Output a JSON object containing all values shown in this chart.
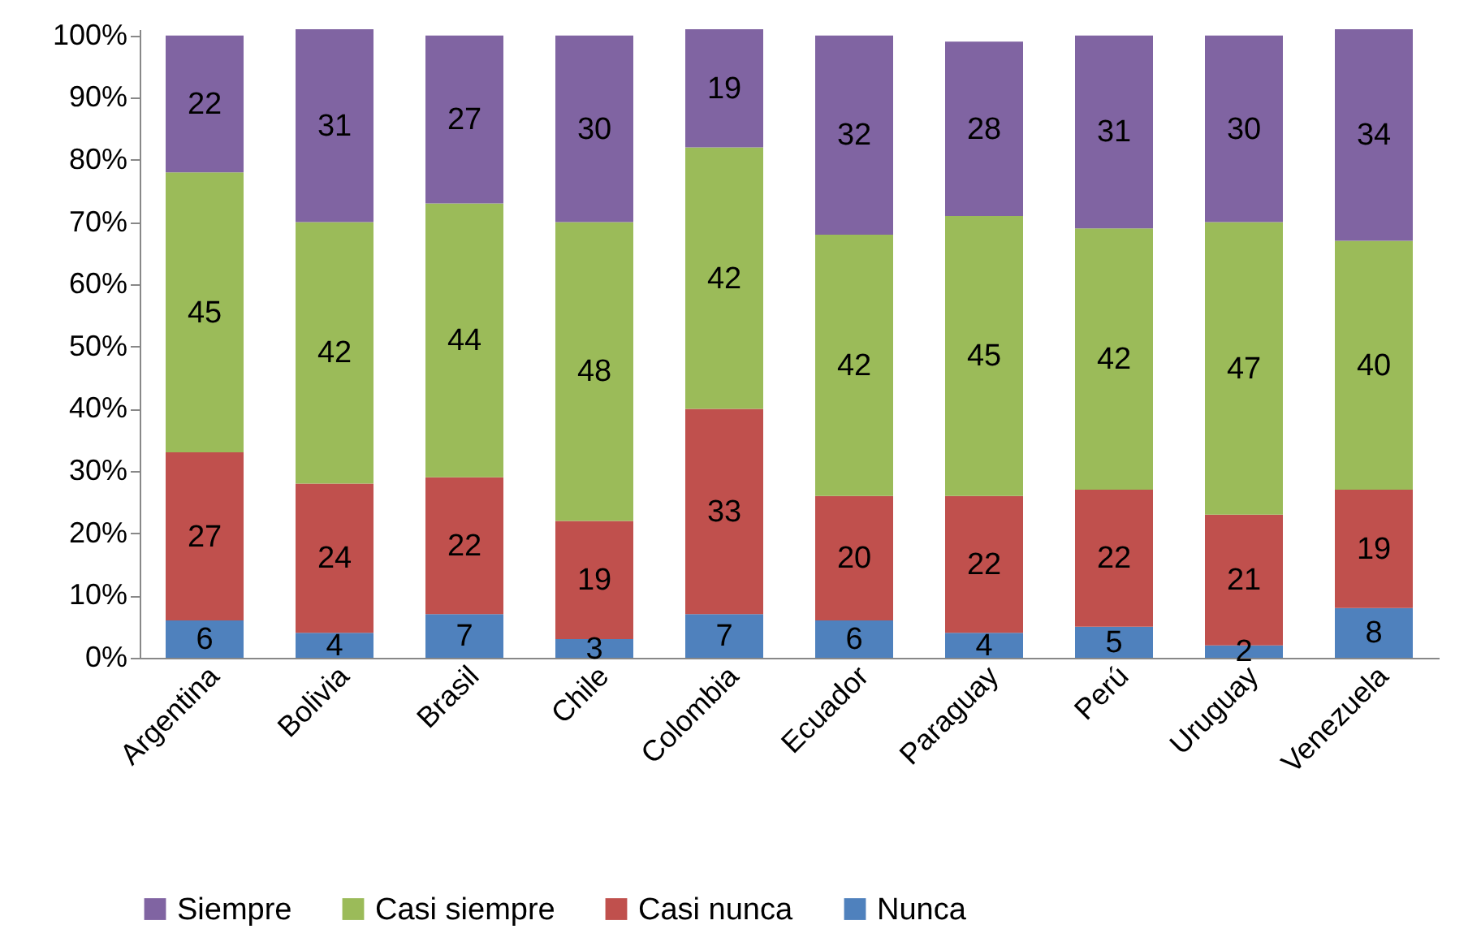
{
  "chart_data": {
    "type": "bar",
    "stacked": true,
    "data_labels": true,
    "legend": "bottom",
    "grid": false,
    "categories": [
      "Argentina",
      "Bolivia",
      "Brasil",
      "Chile",
      "Colombia",
      "Ecuador",
      "Paraguay",
      "Perú",
      "Uruguay",
      "Venezuela"
    ],
    "ylim": [
      0,
      101
    ],
    "yticks": [
      {
        "value": 0,
        "label": "0%"
      },
      {
        "value": 10,
        "label": "10%"
      },
      {
        "value": 20,
        "label": "20%"
      },
      {
        "value": 30,
        "label": "30%"
      },
      {
        "value": 40,
        "label": "40%"
      },
      {
        "value": 50,
        "label": "50%"
      },
      {
        "value": 60,
        "label": "60%"
      },
      {
        "value": 70,
        "label": "70%"
      },
      {
        "value": 80,
        "label": "80%"
      },
      {
        "value": 90,
        "label": "90%"
      },
      {
        "value": 100,
        "label": "100%"
      }
    ],
    "series": [
      {
        "name": "Nunca",
        "color": "#4f81bd",
        "values": [
          6,
          4,
          7,
          3,
          7,
          6,
          4,
          5,
          2,
          8
        ]
      },
      {
        "name": "Casi nunca",
        "color": "#c0504d",
        "values": [
          27,
          24,
          22,
          19,
          33,
          20,
          22,
          22,
          21,
          19
        ]
      },
      {
        "name": "Casi siempre",
        "color": "#9bbb59",
        "values": [
          45,
          42,
          44,
          48,
          42,
          42,
          45,
          42,
          47,
          40
        ]
      },
      {
        "name": "Siempre",
        "color": "#8064a2",
        "values": [
          22,
          31,
          27,
          30,
          19,
          32,
          28,
          31,
          30,
          34
        ]
      }
    ]
  }
}
